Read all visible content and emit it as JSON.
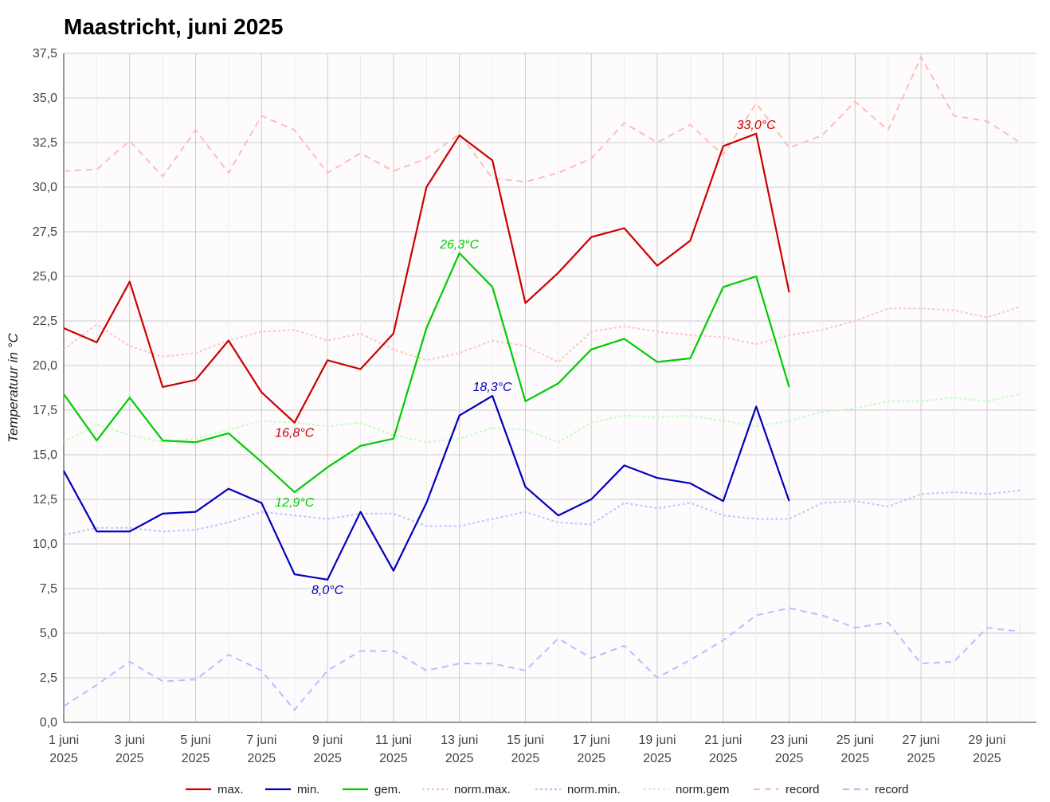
{
  "chart_data": {
    "type": "line",
    "title": "Maastricht, juni 2025",
    "xlabel": "",
    "ylabel": "Temperatuur in °C",
    "ylim": [
      0,
      37.5
    ],
    "yticks": [
      "0,0",
      "2,5",
      "5,0",
      "7,5",
      "10,0",
      "12,5",
      "15,0",
      "17,5",
      "20,0",
      "22,5",
      "25,0",
      "27,5",
      "30,0",
      "32,5",
      "35,0",
      "37,5"
    ],
    "x": [
      1,
      2,
      3,
      4,
      5,
      6,
      7,
      8,
      9,
      10,
      11,
      12,
      13,
      14,
      15,
      16,
      17,
      18,
      19,
      20,
      21,
      22,
      23,
      24,
      25,
      26,
      27,
      28,
      29,
      30
    ],
    "xlim": [
      1,
      30.5
    ],
    "xtick_days": [
      1,
      3,
      5,
      7,
      9,
      11,
      13,
      15,
      17,
      19,
      21,
      23,
      25,
      27,
      29
    ],
    "xtick_labels": [
      {
        "day": "1 juni",
        "year": "2025"
      },
      {
        "day": "3 juni",
        "year": "2025"
      },
      {
        "day": "5 juni",
        "year": "2025"
      },
      {
        "day": "7 juni",
        "year": "2025"
      },
      {
        "day": "9 juni",
        "year": "2025"
      },
      {
        "day": "11 juni",
        "year": "2025"
      },
      {
        "day": "13 juni",
        "year": "2025"
      },
      {
        "day": "15 juni",
        "year": "2025"
      },
      {
        "day": "17 juni",
        "year": "2025"
      },
      {
        "day": "19 juni",
        "year": "2025"
      },
      {
        "day": "21 juni",
        "year": "2025"
      },
      {
        "day": "23 juni",
        "year": "2025"
      },
      {
        "day": "25 juni",
        "year": "2025"
      },
      {
        "day": "27 juni",
        "year": "2025"
      },
      {
        "day": "29 juni",
        "year": "2025"
      }
    ],
    "grid": true,
    "legend_position": "bottom",
    "series": [
      {
        "name": "record",
        "color": "#ffbdb8",
        "style": "dashed",
        "values": [
          30.9,
          31.0,
          32.6,
          30.6,
          33.2,
          30.8,
          34.0,
          33.2,
          30.8,
          31.9,
          30.9,
          31.6,
          33.0,
          30.5,
          30.3,
          30.8,
          31.6,
          33.6,
          32.5,
          33.5,
          31.8,
          34.7,
          32.2,
          32.9,
          34.8,
          33.2,
          37.3,
          34.0,
          33.7,
          32.5
        ]
      },
      {
        "name": "record",
        "color": "#bcbcff",
        "style": "dashed",
        "values": [
          0.9,
          2.1,
          3.4,
          2.3,
          2.4,
          3.8,
          2.9,
          0.7,
          2.9,
          4.0,
          4.0,
          2.9,
          3.3,
          3.3,
          2.9,
          4.7,
          3.6,
          4.3,
          2.5,
          3.5,
          4.6,
          6.0,
          6.4,
          6.0,
          5.3,
          5.6,
          3.3,
          3.4,
          5.3,
          5.1
        ]
      },
      {
        "name": "norm.max.",
        "color": "#ffc2c2",
        "style": "dotted",
        "values": [
          20.9,
          22.3,
          21.1,
          20.5,
          20.7,
          21.4,
          21.9,
          22.0,
          21.4,
          21.8,
          20.9,
          20.3,
          20.7,
          21.4,
          21.1,
          20.2,
          21.9,
          22.2,
          21.9,
          21.7,
          21.6,
          21.2,
          21.7,
          22.0,
          22.5,
          23.2,
          23.2,
          23.1,
          22.7,
          23.3
        ]
      },
      {
        "name": "norm.min.",
        "color": "#c2c2ff",
        "style": "dotted",
        "values": [
          10.5,
          10.9,
          10.9,
          10.7,
          10.8,
          11.2,
          11.8,
          11.6,
          11.4,
          11.7,
          11.7,
          11.0,
          11.0,
          11.4,
          11.8,
          11.2,
          11.1,
          12.3,
          12.0,
          12.3,
          11.6,
          11.4,
          11.4,
          12.3,
          12.4,
          12.1,
          12.8,
          12.9,
          12.8,
          13.0
        ]
      },
      {
        "name": "norm.gem",
        "color": "#bdffbd",
        "style": "dotted",
        "values": [
          15.7,
          16.7,
          16.1,
          15.7,
          15.9,
          16.4,
          16.9,
          16.8,
          16.6,
          16.8,
          16.1,
          15.7,
          15.9,
          16.5,
          16.4,
          15.7,
          16.8,
          17.2,
          17.1,
          17.2,
          16.9,
          16.6,
          16.9,
          17.4,
          17.6,
          18.0,
          18.0,
          18.2,
          18.0,
          18.4
        ]
      },
      {
        "name": "max.",
        "color": "#cc0000",
        "style": "solid",
        "values": [
          22.1,
          21.3,
          24.7,
          18.8,
          19.2,
          21.4,
          18.5,
          16.8,
          20.3,
          19.8,
          21.8,
          30.0,
          32.9,
          31.5,
          23.5,
          25.2,
          27.2,
          27.7,
          25.6,
          27.0,
          32.3,
          33.0,
          24.1,
          null,
          null,
          null,
          null,
          null,
          null,
          null
        ]
      },
      {
        "name": "min.",
        "color": "#0000bb",
        "style": "solid",
        "values": [
          14.1,
          10.7,
          10.7,
          11.7,
          11.8,
          13.1,
          12.3,
          8.3,
          8.0,
          11.8,
          8.5,
          12.3,
          17.2,
          18.3,
          13.2,
          11.6,
          12.5,
          14.4,
          13.7,
          13.4,
          12.4,
          17.7,
          12.4,
          null,
          null,
          null,
          null,
          null,
          null,
          null
        ]
      },
      {
        "name": "gem.",
        "color": "#00cc00",
        "style": "solid",
        "values": [
          18.4,
          15.8,
          18.2,
          15.8,
          15.7,
          16.2,
          14.6,
          12.9,
          14.3,
          15.5,
          15.9,
          22.1,
          26.3,
          24.4,
          18.0,
          19.0,
          20.9,
          21.5,
          20.2,
          20.4,
          24.4,
          25.0,
          18.8,
          null,
          null,
          null,
          null,
          null,
          null,
          null
        ]
      }
    ],
    "annotations": [
      {
        "text": "33,0°C",
        "day": 22,
        "value": 33.0,
        "color": "#cc0000"
      },
      {
        "text": "16,8°C",
        "day": 8,
        "value": 16.8,
        "color": "#cc0000"
      },
      {
        "text": "26,3°C",
        "day": 13,
        "value": 26.3,
        "color": "#00cc00"
      },
      {
        "text": "12,9°C",
        "day": 8,
        "value": 12.9,
        "color": "#00cc00"
      },
      {
        "text": "18,3°C",
        "day": 14,
        "value": 18.3,
        "color": "#0000bb"
      },
      {
        "text": "8,0°C",
        "day": 9,
        "value": 8.0,
        "color": "#0000bb"
      }
    ],
    "legend": [
      {
        "label": "max.",
        "color": "#cc0000",
        "style": "solid"
      },
      {
        "label": "min.",
        "color": "#0000bb",
        "style": "solid"
      },
      {
        "label": "gem.",
        "color": "#00cc00",
        "style": "solid"
      },
      {
        "label": "norm.max.",
        "color": "#ffc2c2",
        "style": "dotted"
      },
      {
        "label": "norm.min.",
        "color": "#c2c2ff",
        "style": "dotted"
      },
      {
        "label": "norm.gem",
        "color": "#bdffbd",
        "style": "dotted"
      },
      {
        "label": "record",
        "color": "#ffbdb8",
        "style": "dashed"
      },
      {
        "label": "record",
        "color": "#bcbcff",
        "style": "dashed"
      }
    ]
  }
}
